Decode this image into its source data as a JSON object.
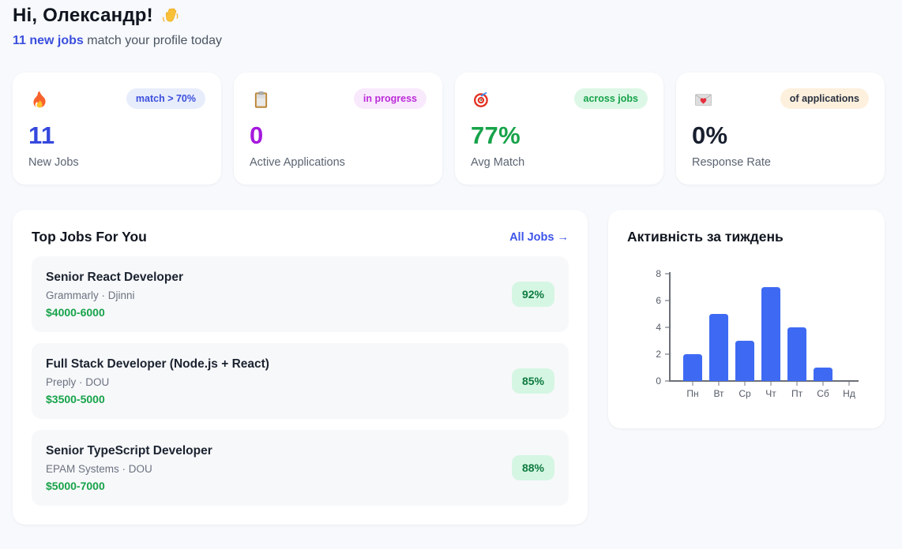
{
  "header": {
    "greeting": "Hi, Олександр!",
    "wave_icon": "waving-hand-icon",
    "subtitle_highlight": "11 new jobs",
    "subtitle_rest": " match your profile today"
  },
  "colors": {
    "accent_blue": "#3b4fdd",
    "accent_purple": "#a518dd",
    "accent_green": "#17a34a",
    "dark": "#181f2e",
    "bar_blue": "#3e6af3",
    "page_bg": "#f7f9fc"
  },
  "stats": [
    {
      "icon": "fire-icon",
      "badge": "match > 70%",
      "value": "11",
      "label": "New Jobs"
    },
    {
      "icon": "clipboard-icon",
      "badge": "in progress",
      "value": "0",
      "label": "Active Applications"
    },
    {
      "icon": "target-icon",
      "badge": "across jobs",
      "value": "77%",
      "label": "Avg Match"
    },
    {
      "icon": "love-letter-icon",
      "badge": "of applications",
      "value": "0%",
      "label": "Response Rate"
    }
  ],
  "top_jobs": {
    "title": "Top Jobs For You",
    "link_label": "All Jobs →",
    "jobs": [
      {
        "title": "Senior React Developer",
        "company": "Grammarly · Djinni",
        "salary": "$4000-6000",
        "match": "92%"
      },
      {
        "title": "Full Stack Developer (Node.js + React)",
        "company": "Preply · DOU",
        "salary": "$3500-5000",
        "match": "85%"
      },
      {
        "title": "Senior TypeScript Developer",
        "company": "EPAM Systems · DOU",
        "salary": "$5000-7000",
        "match": "88%"
      }
    ]
  },
  "chart_data": {
    "type": "bar",
    "title": "Активність за тиждень",
    "categories": [
      "Пн",
      "Вт",
      "Ср",
      "Чт",
      "Пт",
      "Сб",
      "Нд"
    ],
    "values": [
      2,
      5,
      3,
      7,
      4,
      1,
      0
    ],
    "ylim": [
      0,
      8
    ],
    "yticks": [
      0,
      2,
      4,
      6,
      8
    ],
    "bar_color": "#3e6af3",
    "grid": false,
    "legend": "none"
  }
}
